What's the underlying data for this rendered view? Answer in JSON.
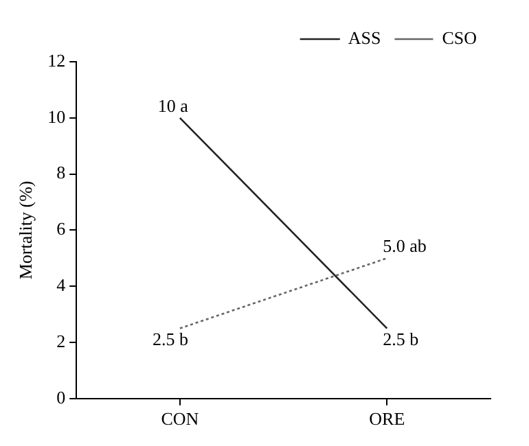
{
  "chart_data": {
    "type": "line",
    "ylabel": "Mortality (%)",
    "categories": [
      "CON",
      "ORE"
    ],
    "series": [
      {
        "name": "ASS",
        "color": "#222222",
        "values": [
          10,
          2.5
        ],
        "value_labels": [
          "10 a",
          "2.5 b"
        ],
        "line_style": "solid"
      },
      {
        "name": "CSO",
        "color": "#666666",
        "values": [
          2.5,
          5.0
        ],
        "value_labels": [
          "2.5 b",
          "5.0 ab"
        ],
        "line_style": "dotted"
      }
    ],
    "ylim": [
      0,
      12
    ],
    "yticks": [
      0,
      2,
      4,
      6,
      8,
      10,
      12
    ],
    "legend": "top right",
    "marker": "none"
  }
}
